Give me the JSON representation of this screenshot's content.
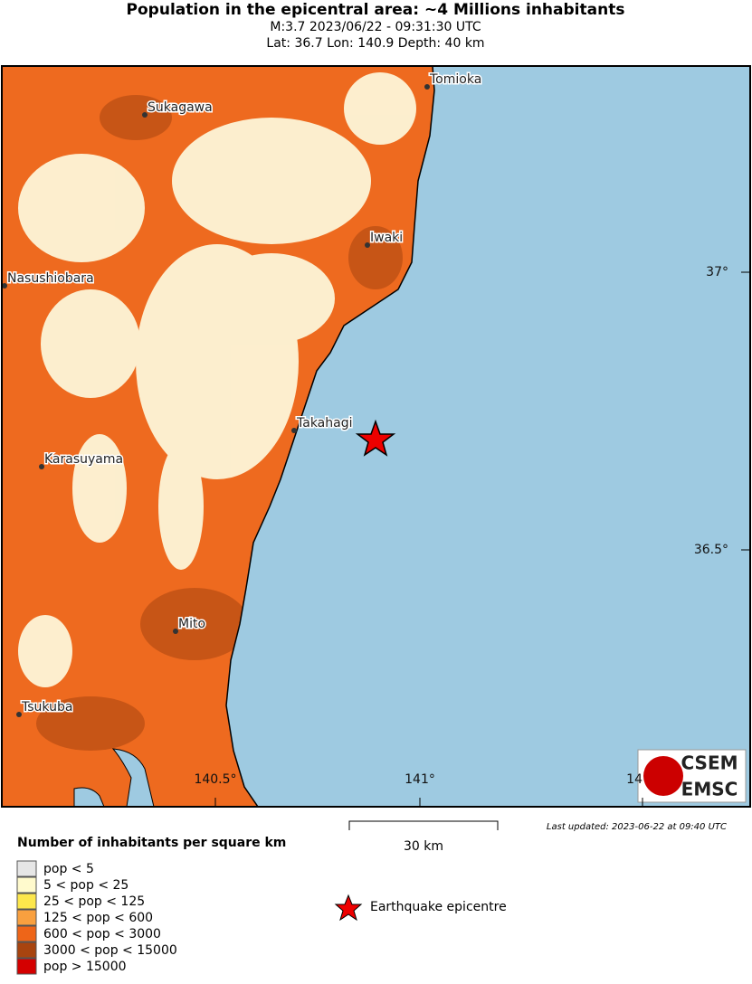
{
  "header": {
    "title": "Population in the epicentral area: ~4 Millions inhabitants",
    "line1": "M:3.7 2023/06/22 - 09:31:30 UTC",
    "line2": "Lat: 36.7 Lon: 140.9 Depth: 40 km"
  },
  "map": {
    "cities": [
      "Tomioka",
      "Sukagawa",
      "Iwaki",
      "Nasushiobara",
      "Takahagi",
      "Karasuyama",
      "Mito",
      "Tsukuba"
    ],
    "lat_labels": [
      "37°",
      "36.5°"
    ],
    "lon_labels": [
      "140.5°",
      "141°",
      "14"
    ],
    "scale_label": "30 km",
    "updated": "Last updated: 2023-06-22 at 09:40 UTC",
    "logo": {
      "top": "CSEM",
      "bottom": "EMSC"
    }
  },
  "legend": {
    "title": "Number of inhabitants per square km",
    "items": [
      {
        "label": "pop < 5",
        "color": "#e6e6e6"
      },
      {
        "label": "5 < pop < 25",
        "color": "#fffacd"
      },
      {
        "label": "25 < pop < 125",
        "color": "#fde74c"
      },
      {
        "label": "125 < pop < 600",
        "color": "#f9a03f"
      },
      {
        "label": "600 < pop < 3000",
        "color": "#ee6518"
      },
      {
        "label": "3000 < pop < 15000",
        "color": "#a8440f"
      },
      {
        "label": "pop > 15000",
        "color": "#d40000"
      }
    ],
    "epicentre": "Earthquake epicentre"
  }
}
